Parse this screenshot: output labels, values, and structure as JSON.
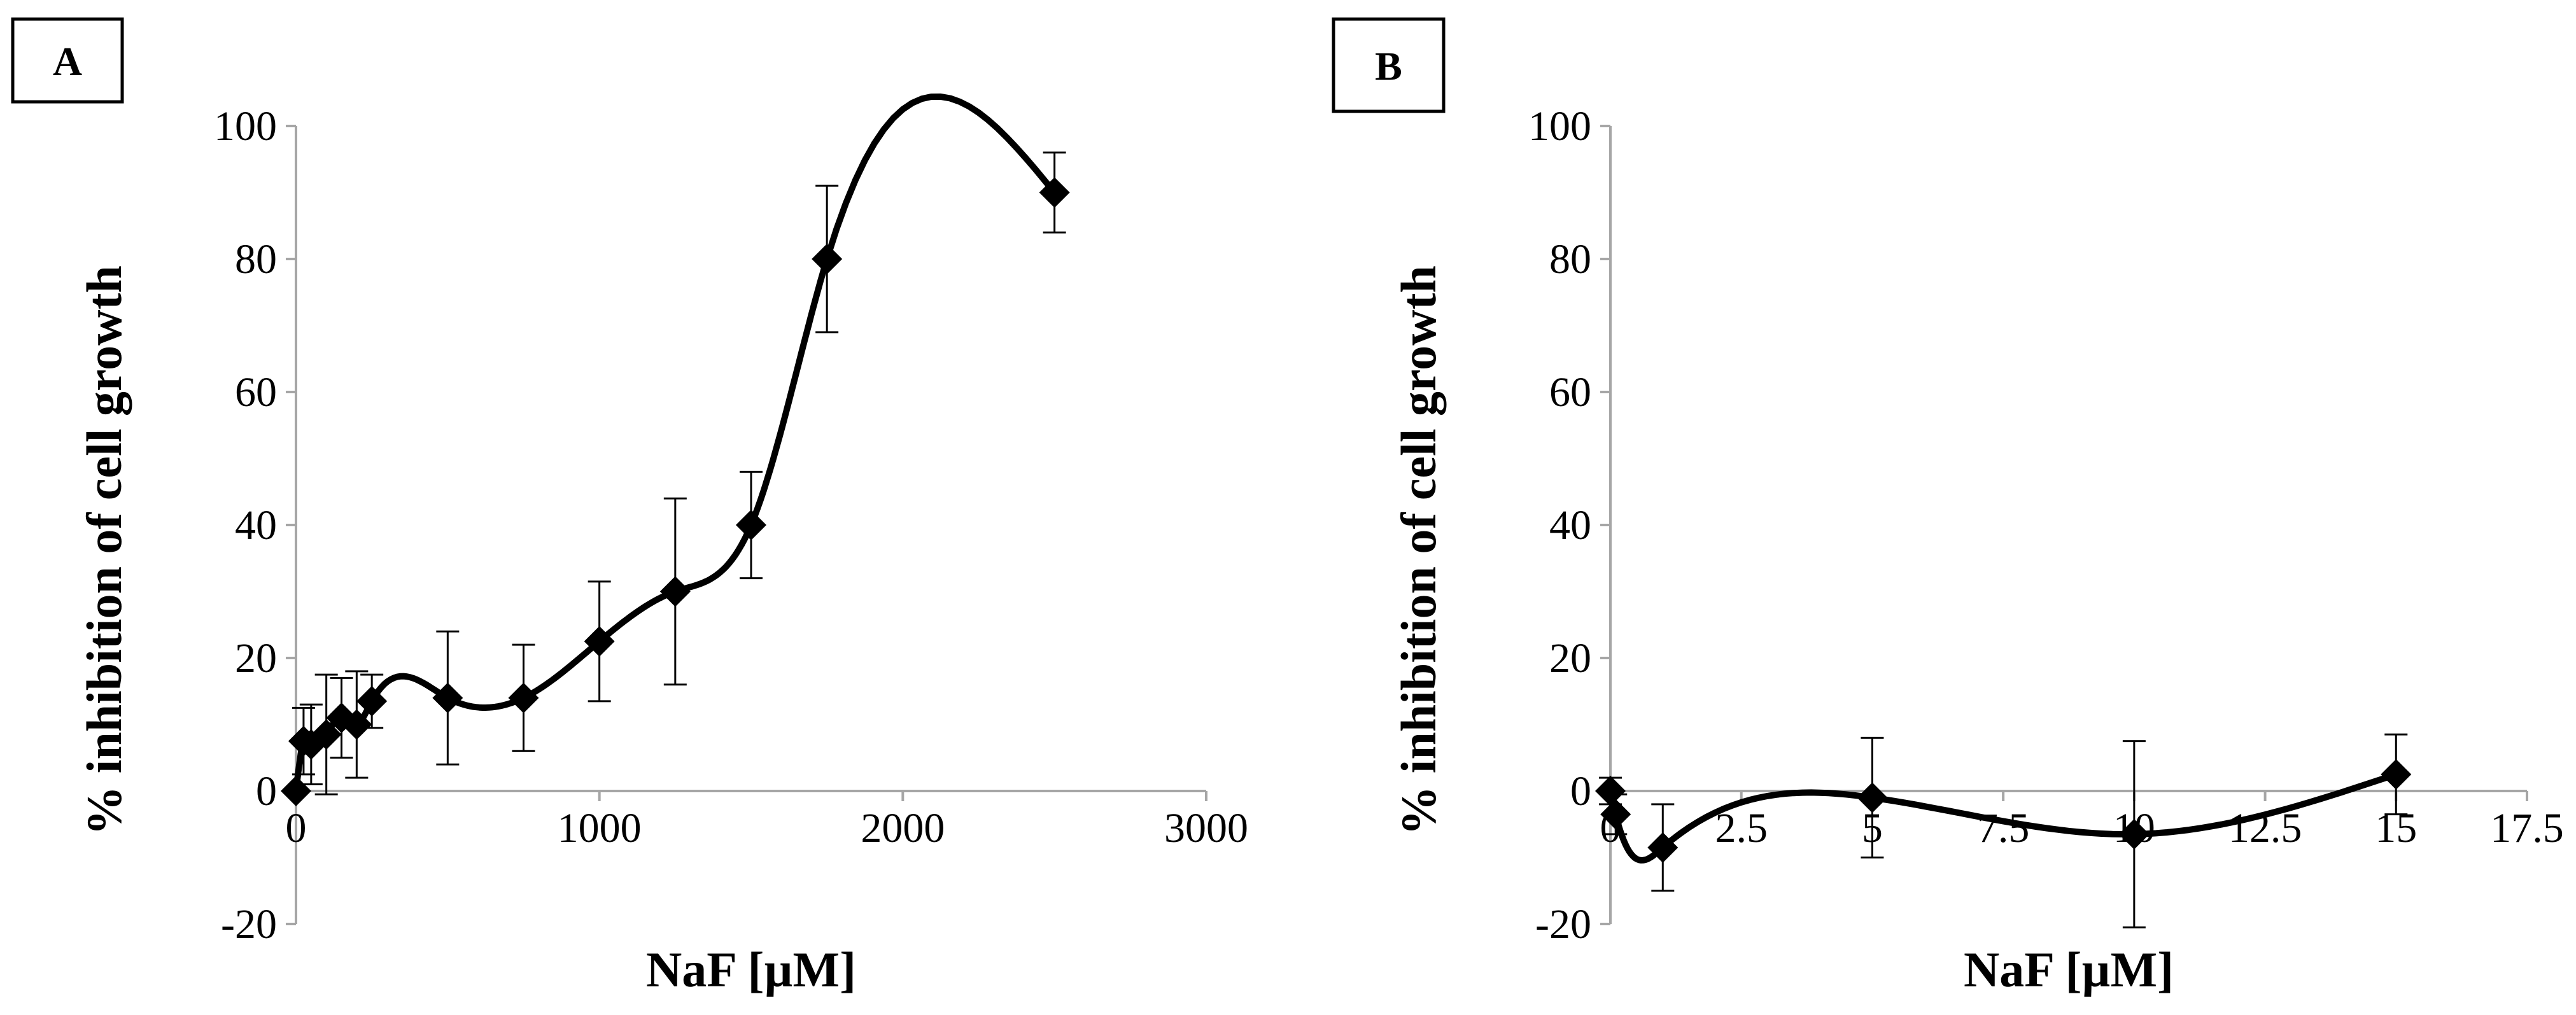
{
  "chart_data": [
    {
      "panel": "A",
      "type": "line",
      "xlabel": "NaF [µM]",
      "ylabel": "% inhibition of cell growth",
      "xlim": [
        0,
        3000
      ],
      "ylim": [
        -20,
        100
      ],
      "xticks": [
        0,
        1000,
        2000,
        3000
      ],
      "xtick_labels": [
        "0",
        "1000",
        "2000",
        "3000"
      ],
      "yticks": [
        -20,
        0,
        20,
        40,
        60,
        80,
        100
      ],
      "ytick_labels": [
        "-20",
        "0",
        "20",
        "40",
        "60",
        "80",
        "100"
      ],
      "series": [
        {
          "name": "NaF",
          "x": [
            0,
            25,
            50,
            100,
            150,
            200,
            250,
            500,
            750,
            1000,
            1250,
            1500,
            1750,
            2500
          ],
          "y": [
            0,
            7.5,
            7,
            8.5,
            11,
            10,
            13.5,
            14,
            14,
            22.5,
            30,
            40,
            80,
            90
          ],
          "err": [
            0,
            5,
            6,
            9,
            6,
            8,
            4,
            10,
            8,
            9,
            14,
            8,
            11,
            6
          ]
        }
      ]
    },
    {
      "panel": "B",
      "type": "line",
      "xlabel": "NaF [µM]",
      "ylabel": "% inhibition of cell growth",
      "xlim": [
        0,
        17.5
      ],
      "ylim": [
        -20,
        100
      ],
      "xticks": [
        0,
        2.5,
        5,
        7.5,
        10,
        12.5,
        15,
        17.5
      ],
      "xtick_labels": [
        "0",
        "2.5",
        "5",
        "7.5",
        "10",
        "12.5",
        "15",
        "17.5"
      ],
      "yticks": [
        -20,
        0,
        20,
        40,
        60,
        80,
        100
      ],
      "ytick_labels": [
        "-20",
        "0",
        "20",
        "40",
        "60",
        "80",
        "100"
      ],
      "series": [
        {
          "name": "NaF",
          "x": [
            0,
            0.1,
            1,
            5,
            10,
            15
          ],
          "y": [
            0,
            -3.5,
            -8.5,
            -1,
            -6.5,
            2.5
          ],
          "err": [
            2,
            3,
            6.5,
            9,
            14,
            6
          ]
        }
      ]
    }
  ]
}
